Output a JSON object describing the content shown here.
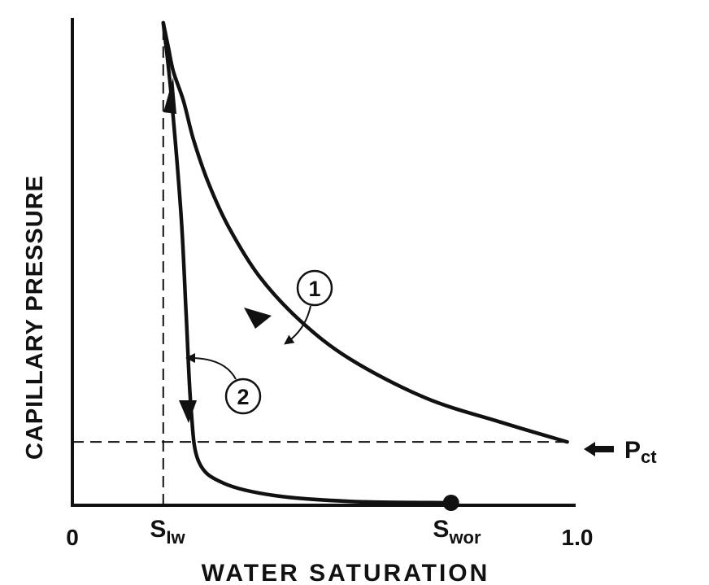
{
  "chart_data": {
    "type": "line",
    "title": "",
    "xlabel": "WATER SATURATION",
    "ylabel": "CAPILLARY PRESSURE",
    "xlim": [
      0,
      1.0
    ],
    "ylim": [
      0,
      1.0
    ],
    "grid": false,
    "x_tick_labels": [
      {
        "x": 0,
        "text": "0"
      },
      {
        "x": 1.0,
        "text": "1.0"
      }
    ],
    "markers": {
      "siw": {
        "x": 0.18,
        "main": "S",
        "sub": "Iw"
      },
      "swor": {
        "x": 0.75,
        "main": "S",
        "sub": "wor"
      },
      "pct": {
        "y": 0.13,
        "main": "P",
        "sub": "ct"
      }
    },
    "series": [
      {
        "name": "1",
        "x": [
          0.98,
          0.85,
          0.7,
          0.55,
          0.45,
          0.37,
          0.31,
          0.27,
          0.24,
          0.22,
          0.2,
          0.19,
          0.18
        ],
        "y": [
          0.13,
          0.17,
          0.22,
          0.3,
          0.38,
          0.47,
          0.57,
          0.66,
          0.75,
          0.83,
          0.89,
          0.94,
          0.99
        ]
      },
      {
        "name": "2",
        "x": [
          0.18,
          0.195,
          0.215,
          0.225,
          0.235,
          0.25,
          0.3,
          0.4,
          0.55,
          0.75
        ],
        "y": [
          0.99,
          0.85,
          0.6,
          0.4,
          0.2,
          0.09,
          0.045,
          0.02,
          0.008,
          0.005
        ]
      }
    ]
  }
}
